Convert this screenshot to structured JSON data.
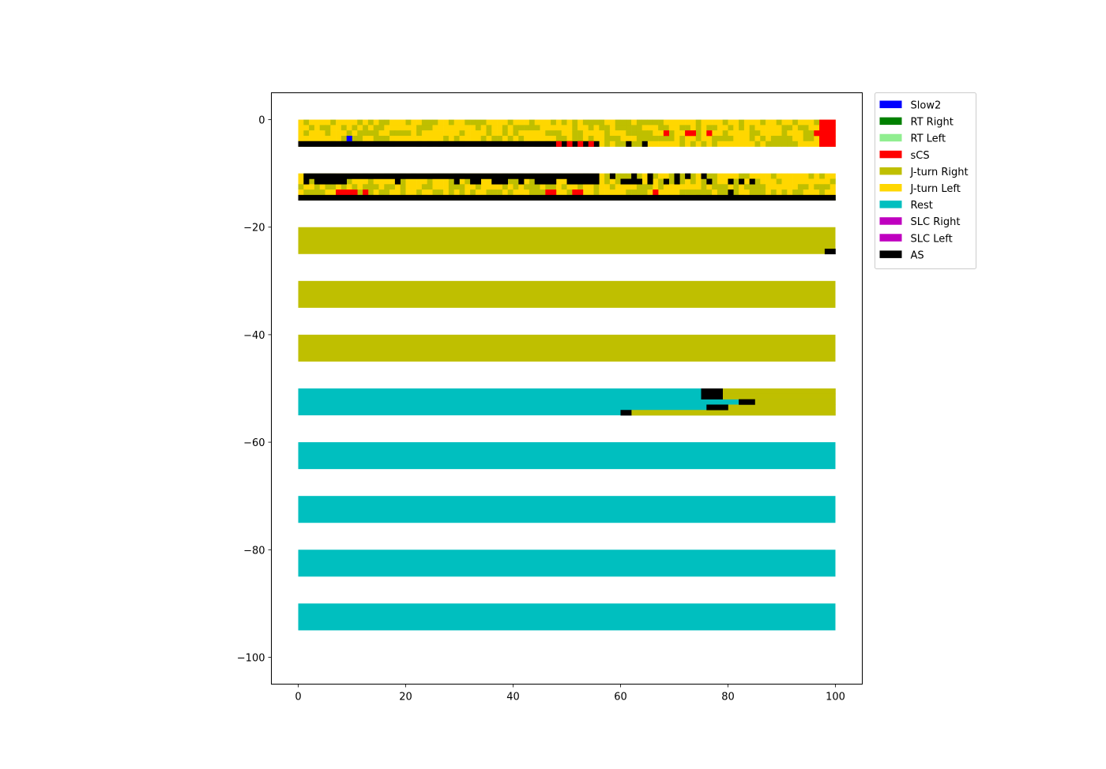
{
  "chart_data": {
    "type": "heatmap",
    "title": "",
    "xlabel": "",
    "ylabel": "",
    "xlim": [
      -5,
      105
    ],
    "ylim": [
      -105,
      5
    ],
    "grid": false,
    "legend_placement": "outside-top-right",
    "xticks": [
      0,
      20,
      40,
      60,
      80,
      100
    ],
    "yticks": [
      0,
      -20,
      -40,
      -60,
      -80,
      -100
    ],
    "xtick_labels": [
      "0",
      "20",
      "40",
      "60",
      "80",
      "100"
    ],
    "ytick_labels": [
      "0",
      "−20",
      "−40",
      "−60",
      "−80",
      "−100"
    ],
    "categories": [
      {
        "key": "slow2",
        "name": "Slow2",
        "color": "#0000ff"
      },
      {
        "key": "rt_right",
        "name": "RT Right",
        "color": "#008000"
      },
      {
        "key": "rt_left",
        "name": "RT Left",
        "color": "#90ee90"
      },
      {
        "key": "scs",
        "name": "sCS",
        "color": "#ff0000"
      },
      {
        "key": "jturn_right",
        "name": "J-turn Right",
        "color": "#bfbf00"
      },
      {
        "key": "jturn_left",
        "name": "J-turn Left",
        "color": "#ffd700"
      },
      {
        "key": "rest",
        "name": "Rest",
        "color": "#00bfbf"
      },
      {
        "key": "slc_right",
        "name": "SLC Right",
        "color": "#bf00bf"
      },
      {
        "key": "slc_left",
        "name": "SLC Left",
        "color": "#bf00bf"
      },
      {
        "key": "as",
        "name": "AS",
        "color": "#000000"
      }
    ],
    "bands": [
      {
        "y_top": 0,
        "n_rows": 5,
        "base": "mixed-jturn",
        "notes": "Mixed J-turn Right / J-turn Left bins; bottom row mostly AS to x≈56",
        "overlays": [
          {
            "cat": "as",
            "x0": 0,
            "x1": 56,
            "row": 4
          },
          {
            "cat": "slow2",
            "x0": 9,
            "x1": 10,
            "row": 3
          },
          {
            "cat": "scs",
            "x0": 48,
            "x1": 49,
            "row": 4
          },
          {
            "cat": "scs",
            "x0": 50,
            "x1": 51,
            "row": 4
          },
          {
            "cat": "scs",
            "x0": 52,
            "x1": 53,
            "row": 4
          },
          {
            "cat": "scs",
            "x0": 54,
            "x1": 55,
            "row": 4
          },
          {
            "cat": "as",
            "x0": 61,
            "x1": 62,
            "row": 4
          },
          {
            "cat": "as",
            "x0": 64,
            "x1": 65,
            "row": 4
          },
          {
            "cat": "scs",
            "x0": 68,
            "x1": 69,
            "row": 2
          },
          {
            "cat": "scs",
            "x0": 72,
            "x1": 74,
            "row": 2
          },
          {
            "cat": "scs",
            "x0": 76,
            "x1": 77,
            "row": 2
          },
          {
            "cat": "scs",
            "x0": 96,
            "x1": 97,
            "row": 2
          },
          {
            "cat": "scs",
            "x0": 97,
            "x1": 100,
            "row": 0
          },
          {
            "cat": "scs",
            "x0": 97,
            "x1": 100,
            "row": 1
          },
          {
            "cat": "scs",
            "x0": 97,
            "x1": 100,
            "row": 2
          },
          {
            "cat": "scs",
            "x0": 97,
            "x1": 100,
            "row": 3
          },
          {
            "cat": "scs",
            "x0": 97,
            "x1": 100,
            "row": 4
          }
        ]
      },
      {
        "y_top": -10,
        "n_rows": 5,
        "base": "mixed-jturn",
        "notes": "Top row AS to x≈56; bottom row AS across; scattered AS and sCS bins",
        "overlays": [
          {
            "cat": "as",
            "x0": 1,
            "x1": 56,
            "row": 0
          },
          {
            "cat": "as",
            "x0": 1,
            "x1": 2,
            "row": 1
          },
          {
            "cat": "as",
            "x0": 3,
            "x1": 9,
            "row": 1
          },
          {
            "cat": "as",
            "x0": 18,
            "x1": 19,
            "row": 1
          },
          {
            "cat": "as",
            "x0": 29,
            "x1": 30,
            "row": 1
          },
          {
            "cat": "as",
            "x0": 32,
            "x1": 34,
            "row": 1
          },
          {
            "cat": "as",
            "x0": 36,
            "x1": 39,
            "row": 1
          },
          {
            "cat": "as",
            "x0": 41,
            "x1": 42,
            "row": 1
          },
          {
            "cat": "as",
            "x0": 44,
            "x1": 48,
            "row": 1
          },
          {
            "cat": "as",
            "x0": 50,
            "x1": 56,
            "row": 1
          },
          {
            "cat": "as",
            "x0": 58,
            "x1": 59,
            "row": 0
          },
          {
            "cat": "as",
            "x0": 62,
            "x1": 63,
            "row": 0
          },
          {
            "cat": "as",
            "x0": 60,
            "x1": 64,
            "row": 1
          },
          {
            "cat": "as",
            "x0": 65,
            "x1": 66,
            "row": 0
          },
          {
            "cat": "as",
            "x0": 65,
            "x1": 66,
            "row": 1
          },
          {
            "cat": "as",
            "x0": 70,
            "x1": 71,
            "row": 0
          },
          {
            "cat": "as",
            "x0": 70,
            "x1": 71,
            "row": 1
          },
          {
            "cat": "as",
            "x0": 68,
            "x1": 69,
            "row": 1
          },
          {
            "cat": "as",
            "x0": 72,
            "x1": 73,
            "row": 0
          },
          {
            "cat": "as",
            "x0": 75,
            "x1": 76,
            "row": 0
          },
          {
            "cat": "as",
            "x0": 76,
            "x1": 77,
            "row": 1
          },
          {
            "cat": "as",
            "x0": 80,
            "x1": 81,
            "row": 1
          },
          {
            "cat": "as",
            "x0": 82,
            "x1": 83,
            "row": 1
          },
          {
            "cat": "as",
            "x0": 84,
            "x1": 85,
            "row": 1
          },
          {
            "cat": "as",
            "x0": 80,
            "x1": 81,
            "row": 3
          },
          {
            "cat": "scs",
            "x0": 7,
            "x1": 11,
            "row": 3
          },
          {
            "cat": "scs",
            "x0": 12,
            "x1": 13,
            "row": 3
          },
          {
            "cat": "scs",
            "x0": 46,
            "x1": 48,
            "row": 3
          },
          {
            "cat": "scs",
            "x0": 51,
            "x1": 53,
            "row": 3
          },
          {
            "cat": "scs",
            "x0": 66,
            "x1": 67,
            "row": 3
          },
          {
            "cat": "as",
            "x0": 0,
            "x1": 100,
            "row": 4
          }
        ]
      },
      {
        "y_top": -20,
        "n_rows": 5,
        "base": "jturn_right",
        "overlays": [
          {
            "cat": "as",
            "x0": 98,
            "x1": 100,
            "row": 4
          }
        ]
      },
      {
        "y_top": -30,
        "n_rows": 5,
        "base": "jturn_right",
        "overlays": []
      },
      {
        "y_top": -40,
        "n_rows": 5,
        "base": "jturn_right",
        "overlays": []
      },
      {
        "y_top": -50,
        "n_rows": 5,
        "base": "rest",
        "notes": "Rest transitioning to J-turn Right near x≈75-85",
        "overlays": [
          {
            "cat": "jturn_right",
            "x0": 79,
            "x1": 100,
            "row": 0
          },
          {
            "cat": "jturn_right",
            "x0": 79,
            "x1": 100,
            "row": 1
          },
          {
            "cat": "jturn_right",
            "x0": 82,
            "x1": 100,
            "row": 2
          },
          {
            "cat": "jturn_right",
            "x0": 78,
            "x1": 100,
            "row": 3
          },
          {
            "cat": "jturn_right",
            "x0": 62,
            "x1": 100,
            "row": 4
          },
          {
            "cat": "as",
            "x0": 75,
            "x1": 79,
            "row": 0
          },
          {
            "cat": "as",
            "x0": 75,
            "x1": 79,
            "row": 1
          },
          {
            "cat": "as",
            "x0": 82,
            "x1": 85,
            "row": 2
          },
          {
            "cat": "as",
            "x0": 76,
            "x1": 80,
            "row": 3
          },
          {
            "cat": "as",
            "x0": 60,
            "x1": 62,
            "row": 4
          }
        ]
      },
      {
        "y_top": -60,
        "n_rows": 5,
        "base": "rest",
        "overlays": []
      },
      {
        "y_top": -70,
        "n_rows": 5,
        "base": "rest",
        "overlays": []
      },
      {
        "y_top": -80,
        "n_rows": 5,
        "base": "rest",
        "overlays": []
      },
      {
        "y_top": -90,
        "n_rows": 5,
        "base": "rest",
        "overlays": []
      }
    ]
  }
}
